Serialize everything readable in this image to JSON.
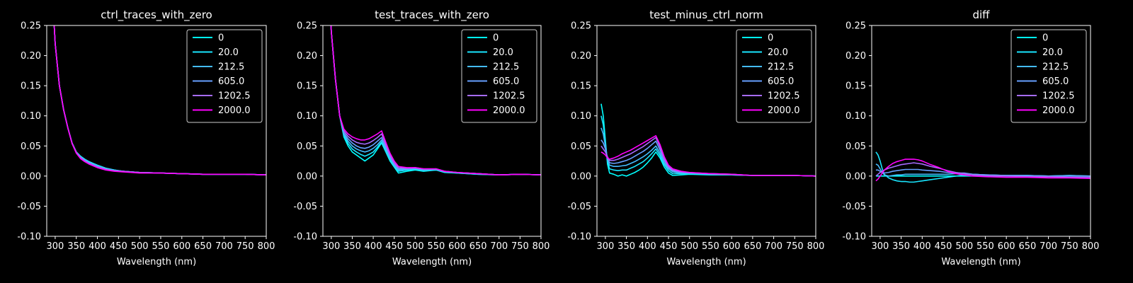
{
  "figure": {
    "background": "#000000",
    "foreground": "#ffffff"
  },
  "chart_data": [
    {
      "type": "line",
      "title": "ctrl_traces_with_zero",
      "xlabel": "Wavelength (nm)",
      "ylabel": "",
      "xlim": [
        280,
        800
      ],
      "ylim": [
        -0.1,
        0.25
      ],
      "xticks": [
        "300",
        "350",
        "400",
        "450",
        "500",
        "550",
        "600",
        "650",
        "700",
        "750",
        "800"
      ],
      "yticks": [
        "0.25",
        "0.20",
        "0.15",
        "0.10",
        "0.05",
        "0.00",
        "-0.05",
        "-0.10"
      ],
      "legend": "top-right",
      "x": [
        290,
        300,
        310,
        320,
        330,
        340,
        350,
        360,
        370,
        380,
        390,
        400,
        420,
        440,
        460,
        480,
        500,
        550,
        600,
        650,
        700,
        750,
        800
      ],
      "series": [
        {
          "name": "0",
          "color": "#00ffff",
          "values": [
            0.35,
            0.22,
            0.15,
            0.11,
            0.08,
            0.055,
            0.04,
            0.033,
            0.028,
            0.024,
            0.021,
            0.018,
            0.013,
            0.01,
            0.008,
            0.007,
            0.006,
            0.005,
            0.004,
            0.003,
            0.003,
            0.003,
            0.002
          ]
        },
        {
          "name": "20.0",
          "color": "#19e6ff",
          "values": [
            0.35,
            0.22,
            0.15,
            0.11,
            0.08,
            0.055,
            0.04,
            0.033,
            0.028,
            0.024,
            0.021,
            0.018,
            0.013,
            0.01,
            0.008,
            0.007,
            0.006,
            0.005,
            0.004,
            0.003,
            0.003,
            0.003,
            0.002
          ]
        },
        {
          "name": "212.5",
          "color": "#44bbff",
          "values": [
            0.35,
            0.22,
            0.15,
            0.11,
            0.08,
            0.055,
            0.04,
            0.032,
            0.027,
            0.023,
            0.02,
            0.017,
            0.012,
            0.009,
            0.008,
            0.007,
            0.006,
            0.005,
            0.004,
            0.003,
            0.003,
            0.003,
            0.002
          ]
        },
        {
          "name": "605.0",
          "color": "#66a0ff",
          "values": [
            0.35,
            0.22,
            0.15,
            0.11,
            0.08,
            0.055,
            0.04,
            0.031,
            0.026,
            0.022,
            0.019,
            0.016,
            0.012,
            0.009,
            0.008,
            0.007,
            0.006,
            0.005,
            0.004,
            0.003,
            0.003,
            0.003,
            0.002
          ]
        },
        {
          "name": "1202.5",
          "color": "#a66cff",
          "values": [
            0.35,
            0.22,
            0.15,
            0.11,
            0.08,
            0.054,
            0.039,
            0.03,
            0.025,
            0.021,
            0.018,
            0.015,
            0.011,
            0.009,
            0.008,
            0.007,
            0.006,
            0.005,
            0.004,
            0.003,
            0.003,
            0.003,
            0.002
          ]
        },
        {
          "name": "2000.0",
          "color": "#ff00ff",
          "values": [
            0.35,
            0.22,
            0.15,
            0.11,
            0.08,
            0.054,
            0.038,
            0.029,
            0.024,
            0.02,
            0.017,
            0.014,
            0.01,
            0.008,
            0.007,
            0.006,
            0.005,
            0.005,
            0.004,
            0.003,
            0.003,
            0.003,
            0.002
          ]
        }
      ]
    },
    {
      "type": "line",
      "title": "test_traces_with_zero",
      "xlabel": "Wavelength (nm)",
      "ylabel": "",
      "xlim": [
        280,
        800
      ],
      "ylim": [
        -0.1,
        0.25
      ],
      "xticks": [
        "300",
        "350",
        "400",
        "450",
        "500",
        "550",
        "600",
        "650",
        "700",
        "750",
        "800"
      ],
      "yticks": [
        "0.25",
        "0.20",
        "0.15",
        "0.10",
        "0.05",
        "0.00",
        "-0.05",
        "-0.10"
      ],
      "legend": "top-right",
      "x": [
        290,
        300,
        310,
        320,
        330,
        340,
        350,
        360,
        370,
        380,
        390,
        400,
        410,
        420,
        430,
        440,
        450,
        460,
        480,
        500,
        520,
        550,
        570,
        600,
        650,
        700,
        750,
        800
      ],
      "series": [
        {
          "name": "0",
          "color": "#00ffff",
          "values": [
            0.4,
            0.24,
            0.16,
            0.1,
            0.065,
            0.05,
            0.04,
            0.035,
            0.03,
            0.025,
            0.03,
            0.035,
            0.045,
            0.055,
            0.04,
            0.025,
            0.015,
            0.005,
            0.008,
            0.01,
            0.008,
            0.01,
            0.006,
            0.005,
            0.003,
            0.002,
            0.003,
            0.002
          ]
        },
        {
          "name": "20.0",
          "color": "#19e6ff",
          "values": [
            0.4,
            0.24,
            0.16,
            0.1,
            0.068,
            0.054,
            0.045,
            0.04,
            0.036,
            0.033,
            0.036,
            0.04,
            0.048,
            0.057,
            0.042,
            0.027,
            0.016,
            0.008,
            0.01,
            0.011,
            0.009,
            0.01,
            0.007,
            0.005,
            0.003,
            0.002,
            0.003,
            0.002
          ]
        },
        {
          "name": "212.5",
          "color": "#44bbff",
          "values": [
            0.4,
            0.24,
            0.16,
            0.1,
            0.07,
            0.058,
            0.05,
            0.045,
            0.042,
            0.04,
            0.042,
            0.046,
            0.052,
            0.06,
            0.045,
            0.03,
            0.018,
            0.01,
            0.011,
            0.012,
            0.01,
            0.011,
            0.007,
            0.006,
            0.004,
            0.002,
            0.003,
            0.002
          ]
        },
        {
          "name": "605.0",
          "color": "#66a0ff",
          "values": [
            0.4,
            0.24,
            0.16,
            0.1,
            0.072,
            0.062,
            0.055,
            0.05,
            0.047,
            0.046,
            0.048,
            0.052,
            0.058,
            0.064,
            0.048,
            0.032,
            0.02,
            0.012,
            0.012,
            0.013,
            0.011,
            0.012,
            0.008,
            0.006,
            0.004,
            0.002,
            0.003,
            0.002
          ]
        },
        {
          "name": "1202.5",
          "color": "#a66cff",
          "values": [
            0.4,
            0.24,
            0.16,
            0.1,
            0.075,
            0.066,
            0.06,
            0.056,
            0.054,
            0.053,
            0.055,
            0.059,
            0.064,
            0.07,
            0.052,
            0.035,
            0.022,
            0.014,
            0.013,
            0.014,
            0.012,
            0.012,
            0.008,
            0.006,
            0.004,
            0.002,
            0.003,
            0.002
          ]
        },
        {
          "name": "2000.0",
          "color": "#ff00ff",
          "values": [
            0.4,
            0.24,
            0.16,
            0.1,
            0.078,
            0.07,
            0.065,
            0.062,
            0.06,
            0.06,
            0.062,
            0.066,
            0.07,
            0.075,
            0.056,
            0.038,
            0.025,
            0.016,
            0.014,
            0.014,
            0.012,
            0.012,
            0.008,
            0.006,
            0.004,
            0.002,
            0.003,
            0.002
          ]
        }
      ]
    },
    {
      "type": "line",
      "title": "test_minus_ctrl_norm",
      "xlabel": "Wavelength (nm)",
      "ylabel": "",
      "xlim": [
        280,
        800
      ],
      "ylim": [
        -0.1,
        0.25
      ],
      "xticks": [
        "300",
        "350",
        "400",
        "450",
        "500",
        "550",
        "600",
        "650",
        "700",
        "750",
        "800"
      ],
      "yticks": [
        "0.25",
        "0.20",
        "0.15",
        "0.10",
        "0.05",
        "0.00",
        "-0.05",
        "-0.10"
      ],
      "legend": "top-right",
      "x": [
        290,
        295,
        300,
        305,
        310,
        320,
        330,
        340,
        350,
        360,
        370,
        380,
        390,
        400,
        410,
        420,
        430,
        440,
        450,
        460,
        480,
        500,
        550,
        600,
        650,
        700,
        750,
        800
      ],
      "series": [
        {
          "name": "0",
          "color": "#00ffff",
          "values": [
            0.12,
            0.1,
            0.06,
            0.02,
            0.005,
            0.003,
            0.0,
            0.002,
            0.0,
            0.003,
            0.006,
            0.01,
            0.015,
            0.022,
            0.03,
            0.04,
            0.03,
            0.015,
            0.005,
            0.001,
            0.002,
            0.003,
            0.002,
            0.002,
            0.001,
            0.001,
            0.001,
            0.0
          ]
        },
        {
          "name": "20.0",
          "color": "#19e6ff",
          "values": [
            0.1,
            0.085,
            0.055,
            0.025,
            0.012,
            0.01,
            0.009,
            0.01,
            0.01,
            0.013,
            0.016,
            0.02,
            0.024,
            0.03,
            0.037,
            0.045,
            0.034,
            0.019,
            0.009,
            0.004,
            0.004,
            0.004,
            0.003,
            0.002,
            0.001,
            0.001,
            0.001,
            0.0
          ]
        },
        {
          "name": "212.5",
          "color": "#44bbff",
          "values": [
            0.08,
            0.07,
            0.05,
            0.028,
            0.018,
            0.016,
            0.016,
            0.017,
            0.018,
            0.021,
            0.024,
            0.028,
            0.032,
            0.037,
            0.043,
            0.05,
            0.038,
            0.022,
            0.012,
            0.007,
            0.005,
            0.005,
            0.003,
            0.002,
            0.001,
            0.001,
            0.001,
            0.0
          ]
        },
        {
          "name": "605.0",
          "color": "#66a0ff",
          "values": [
            0.06,
            0.055,
            0.045,
            0.03,
            0.022,
            0.021,
            0.022,
            0.024,
            0.026,
            0.029,
            0.033,
            0.037,
            0.041,
            0.046,
            0.052,
            0.058,
            0.043,
            0.026,
            0.014,
            0.009,
            0.006,
            0.005,
            0.004,
            0.003,
            0.001,
            0.001,
            0.001,
            0.0
          ]
        },
        {
          "name": "1202.5",
          "color": "#a66cff",
          "values": [
            0.05,
            0.045,
            0.04,
            0.032,
            0.026,
            0.026,
            0.028,
            0.031,
            0.034,
            0.037,
            0.041,
            0.045,
            0.049,
            0.054,
            0.059,
            0.064,
            0.048,
            0.029,
            0.016,
            0.01,
            0.007,
            0.006,
            0.004,
            0.003,
            0.001,
            0.001,
            0.001,
            0.0
          ]
        },
        {
          "name": "2000.0",
          "color": "#ff00ff",
          "values": [
            0.04,
            0.038,
            0.035,
            0.03,
            0.028,
            0.03,
            0.033,
            0.037,
            0.04,
            0.043,
            0.047,
            0.051,
            0.055,
            0.059,
            0.063,
            0.067,
            0.052,
            0.032,
            0.018,
            0.012,
            0.008,
            0.006,
            0.004,
            0.003,
            0.001,
            0.001,
            0.001,
            0.0
          ]
        }
      ]
    },
    {
      "type": "line",
      "title": "diff",
      "xlabel": "Wavelength (nm)",
      "ylabel": "",
      "xlim": [
        280,
        800
      ],
      "ylim": [
        -0.1,
        0.25
      ],
      "xticks": [
        "300",
        "350",
        "400",
        "450",
        "500",
        "550",
        "600",
        "650",
        "700",
        "750",
        "800"
      ],
      "yticks": [
        "0.25",
        "0.20",
        "0.15",
        "0.10",
        "0.05",
        "0.00",
        "-0.05",
        "-0.10"
      ],
      "legend": "top-right",
      "x": [
        290,
        295,
        300,
        305,
        310,
        320,
        330,
        340,
        350,
        360,
        370,
        380,
        390,
        400,
        420,
        440,
        460,
        480,
        500,
        520,
        550,
        600,
        650,
        700,
        750,
        800
      ],
      "series": [
        {
          "name": "0",
          "color": "#00ffff",
          "values": [
            0.0,
            0.0,
            0.0,
            0.0,
            0.0,
            0.0,
            0.0,
            0.0,
            0.0,
            0.0,
            0.0,
            0.0,
            0.0,
            0.0,
            0.0,
            0.0,
            0.0,
            0.0,
            0.0,
            0.0,
            0.0,
            0.0,
            0.0,
            0.0,
            0.0,
            0.0
          ]
        },
        {
          "name": "20.0",
          "color": "#19e6ff",
          "values": [
            0.04,
            0.035,
            0.025,
            0.012,
            0.003,
            -0.003,
            -0.006,
            -0.008,
            -0.009,
            -0.009,
            -0.01,
            -0.01,
            -0.009,
            -0.008,
            -0.006,
            -0.004,
            -0.002,
            0.0,
            0.002,
            0.003,
            0.002,
            0.001,
            0.001,
            0.0,
            0.001,
            0.0
          ]
        },
        {
          "name": "212.5",
          "color": "#44bbff",
          "values": [
            0.02,
            0.018,
            0.012,
            0.006,
            0.002,
            0.0,
            0.001,
            0.002,
            0.002,
            0.003,
            0.003,
            0.003,
            0.003,
            0.003,
            0.003,
            0.003,
            0.003,
            0.004,
            0.004,
            0.003,
            0.002,
            0.001,
            0.001,
            0.0,
            0.001,
            0.0
          ]
        },
        {
          "name": "605.0",
          "color": "#66a0ff",
          "values": [
            0.01,
            0.01,
            0.008,
            0.006,
            0.005,
            0.006,
            0.008,
            0.009,
            0.01,
            0.011,
            0.011,
            0.011,
            0.011,
            0.01,
            0.009,
            0.008,
            0.006,
            0.005,
            0.005,
            0.003,
            0.002,
            0.001,
            0.001,
            0.0,
            0.0,
            0.0
          ]
        },
        {
          "name": "1202.5",
          "color": "#a66cff",
          "values": [
            0.0,
            0.003,
            0.006,
            0.008,
            0.01,
            0.013,
            0.015,
            0.017,
            0.019,
            0.02,
            0.021,
            0.022,
            0.021,
            0.02,
            0.016,
            0.013,
            0.009,
            0.006,
            0.004,
            0.002,
            0.001,
            0.0,
            -0.001,
            -0.001,
            -0.002,
            -0.002
          ]
        },
        {
          "name": "2000.0",
          "color": "#ff00ff",
          "values": [
            -0.008,
            -0.005,
            0.0,
            0.005,
            0.01,
            0.016,
            0.021,
            0.024,
            0.026,
            0.028,
            0.028,
            0.028,
            0.027,
            0.025,
            0.019,
            0.014,
            0.008,
            0.004,
            0.002,
            0.0,
            -0.001,
            -0.002,
            -0.002,
            -0.003,
            -0.003,
            -0.004
          ]
        }
      ]
    }
  ]
}
